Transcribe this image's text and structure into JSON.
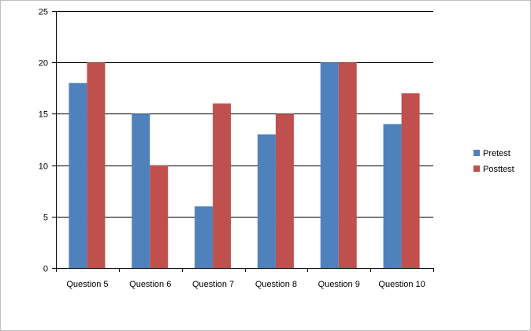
{
  "chart_data": {
    "type": "bar",
    "categories": [
      "Question 5",
      "Question 6",
      "Question 7",
      "Question 8",
      "Question 9",
      "Question 10"
    ],
    "series": [
      {
        "name": "Pretest",
        "values": [
          18,
          15,
          6,
          13,
          20,
          14
        ],
        "color": "#4f81bd"
      },
      {
        "name": "Posttest",
        "values": [
          20,
          10,
          16,
          15,
          20,
          17
        ],
        "color": "#c0504d"
      }
    ],
    "title": "",
    "xlabel": "",
    "ylabel": "",
    "ylim": [
      0,
      25
    ],
    "yticks": [
      0,
      5,
      10,
      15,
      20,
      25
    ],
    "grid": true,
    "legend_position": "right"
  }
}
